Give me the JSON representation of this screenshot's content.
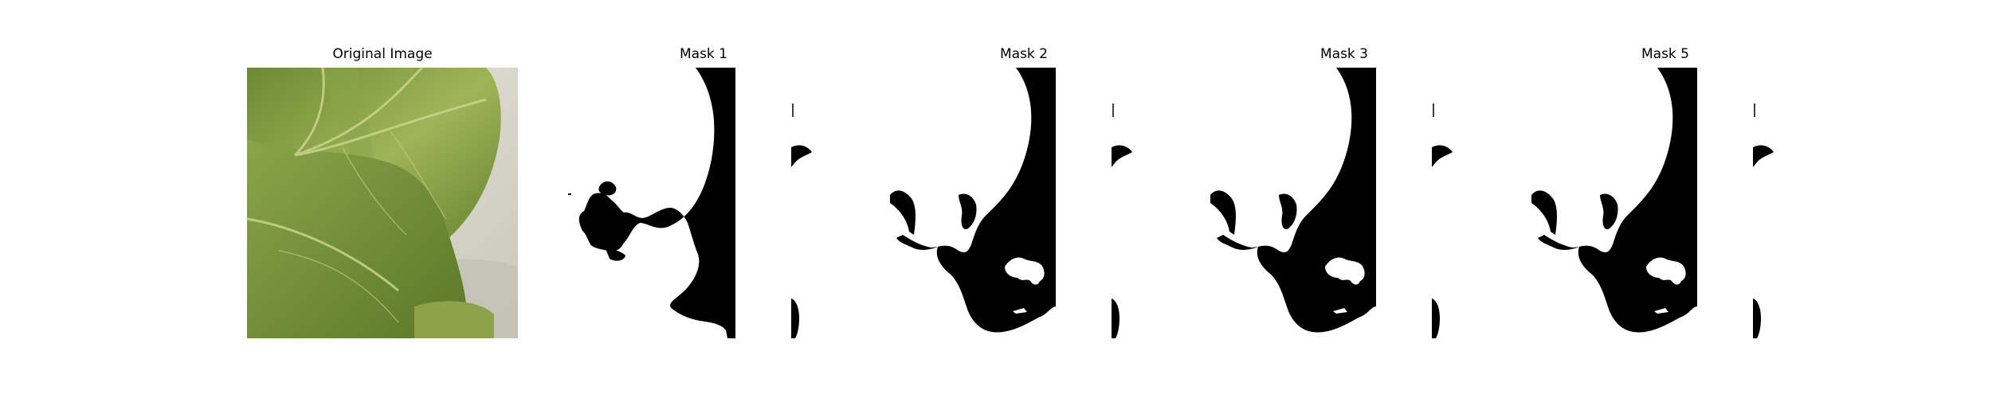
{
  "figure": {
    "panels": [
      {
        "title": "Original Image",
        "kind": "photo"
      },
      {
        "title": "Mask 1",
        "kind": "mask"
      },
      {
        "title": "Mask 2",
        "kind": "mask"
      },
      {
        "title": "Mask 3",
        "kind": "mask"
      },
      {
        "title": "Mask 5",
        "kind": "mask"
      }
    ]
  },
  "colors": {
    "mask_fg": "#000000",
    "mask_bg": "#ffffff",
    "leaf_dark": "#4f6d25",
    "leaf_mid": "#7a9840",
    "leaf_light": "#a9bb66",
    "background": "#dedcd0"
  }
}
